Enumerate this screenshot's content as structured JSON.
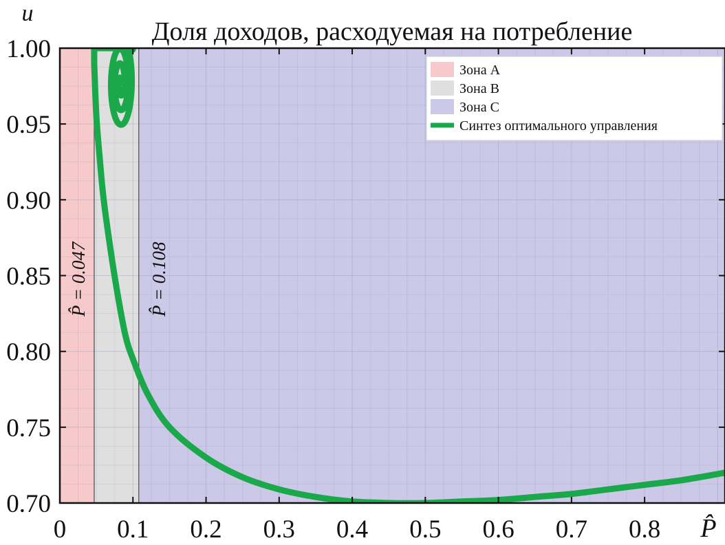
{
  "chart_data": {
    "type": "line",
    "title": "Доля доходов, расходуемая на потребление",
    "ylabel": "u",
    "xlabel": "P̂",
    "xlim": [
      0,
      0.91
    ],
    "ylim": [
      0.7,
      1.0
    ],
    "grid": true,
    "legend_position": "top-right",
    "x_ticks": [
      {
        "value": 0,
        "label": "0"
      },
      {
        "value": 0.1,
        "label": "0.1"
      },
      {
        "value": 0.2,
        "label": "0.2"
      },
      {
        "value": 0.3,
        "label": "0.3"
      },
      {
        "value": 0.4,
        "label": "0.4"
      },
      {
        "value": 0.5,
        "label": "0.5"
      },
      {
        "value": 0.6,
        "label": "0.6"
      },
      {
        "value": 0.7,
        "label": "0.7"
      },
      {
        "value": 0.8,
        "label": "0.8"
      }
    ],
    "y_ticks": [
      {
        "value": 0.7,
        "label": "0.70"
      },
      {
        "value": 0.75,
        "label": "0.75"
      },
      {
        "value": 0.8,
        "label": "0.80"
      },
      {
        "value": 0.85,
        "label": "0.85"
      },
      {
        "value": 0.9,
        "label": "0.90"
      },
      {
        "value": 0.95,
        "label": "0.95"
      },
      {
        "value": 1.0,
        "label": "1.00"
      }
    ],
    "zones": [
      {
        "name": "Зона A",
        "x_from": 0,
        "x_to": 0.047,
        "color": "#f6c9ca"
      },
      {
        "name": "Зона B",
        "x_from": 0.047,
        "x_to": 0.108,
        "color": "#dfdfdf"
      },
      {
        "name": "Зона C",
        "x_from": 0.108,
        "x_to": 0.91,
        "color": "#cbc8e8"
      }
    ],
    "boundaries": [
      {
        "x": 0.047,
        "label": "P̂ = 0.047"
      },
      {
        "x": 0.108,
        "label": "P̂ = 0.108"
      }
    ],
    "series": [
      {
        "name": "Синтез оптимального управления",
        "color": "#1aa84a",
        "x": [
          0.047,
          0.05,
          0.055,
          0.06,
          0.07,
          0.08,
          0.09,
          0.1,
          0.12,
          0.15,
          0.2,
          0.25,
          0.3,
          0.35,
          0.4,
          0.45,
          0.5,
          0.55,
          0.6,
          0.65,
          0.7,
          0.75,
          0.8,
          0.85,
          0.91
        ],
        "y": [
          0.99,
          0.955,
          0.925,
          0.9,
          0.865,
          0.835,
          0.81,
          0.795,
          0.772,
          0.75,
          0.73,
          0.717,
          0.709,
          0.704,
          0.701,
          0.7,
          0.7,
          0.701,
          0.702,
          0.704,
          0.706,
          0.709,
          0.712,
          0.715,
          0.72
        ]
      }
    ]
  }
}
